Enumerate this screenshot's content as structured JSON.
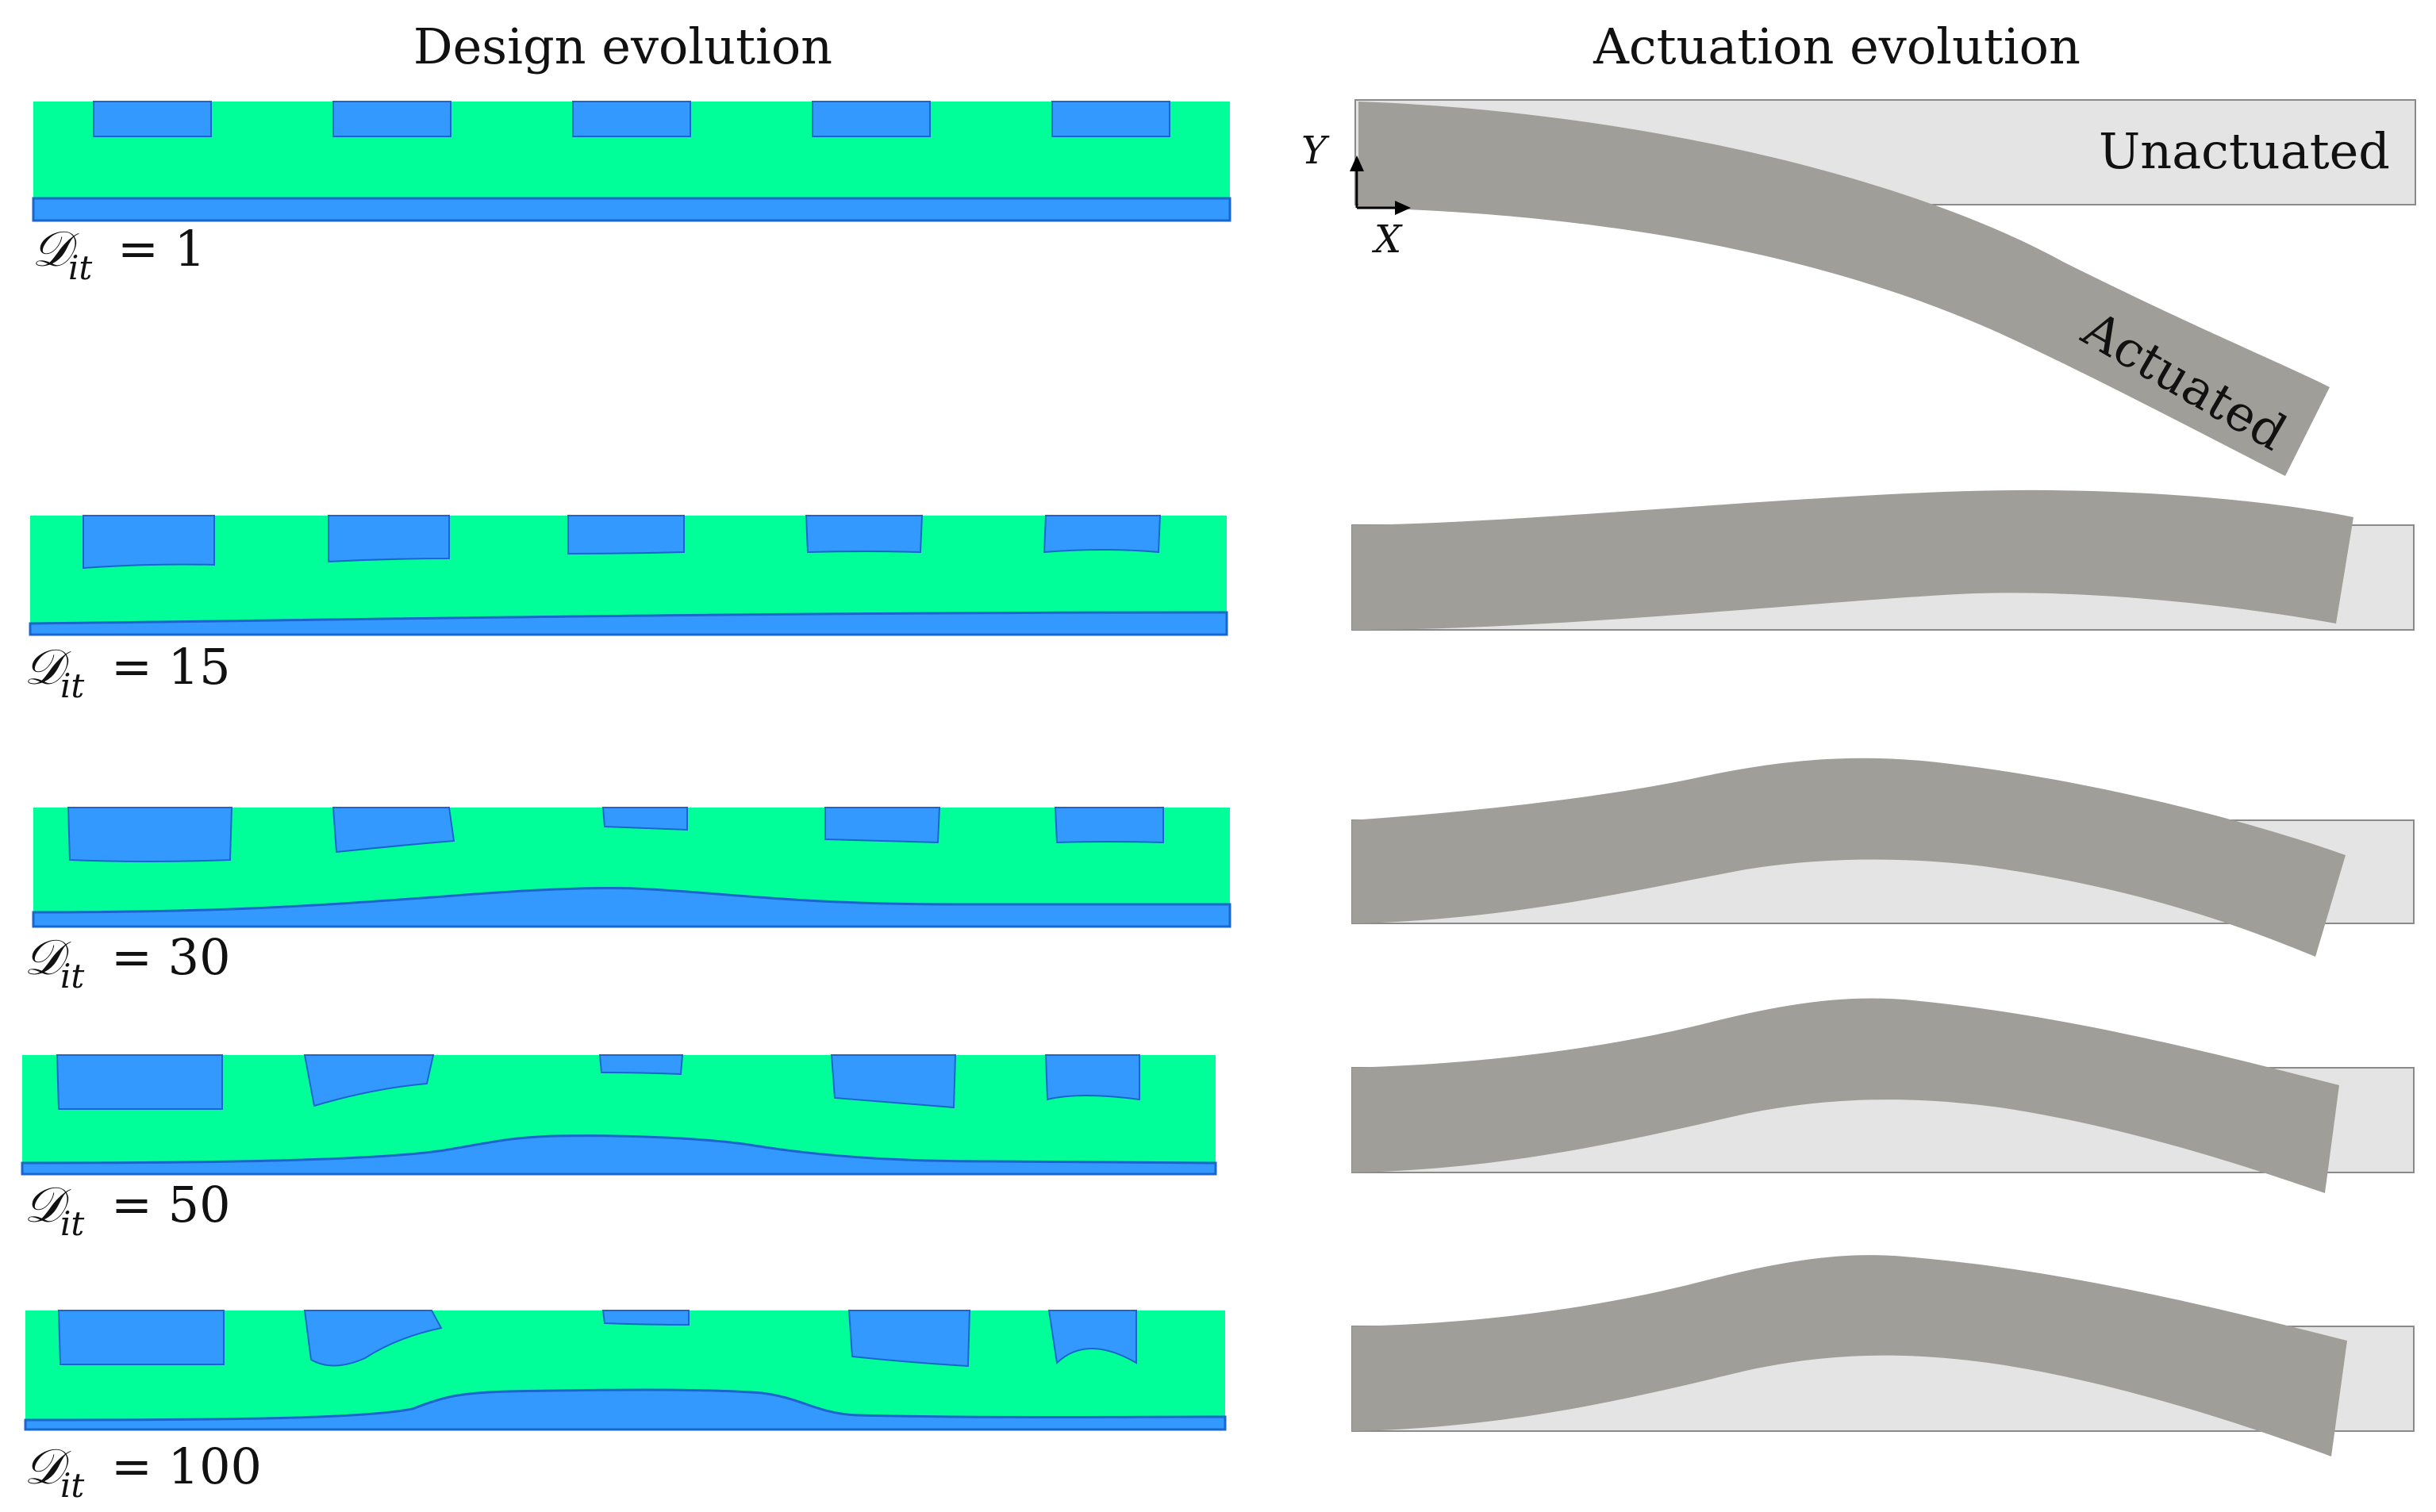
{
  "headers": {
    "design": "Design evolution",
    "actuation": "Actuation evolution"
  },
  "annotations": {
    "unactuated": "Unactuated",
    "actuated": "Actuated",
    "axis_x": "X",
    "axis_y": "Y"
  },
  "label_symbol": "𝒟",
  "label_subscript": "it",
  "iterations": [
    {
      "value": "= 1"
    },
    {
      "value": "= 15"
    },
    {
      "value": "= 30"
    },
    {
      "value": "= 50"
    },
    {
      "value": "= 100"
    }
  ],
  "colors": {
    "matrix": "#00ff99",
    "material": "#3399ff",
    "material_edge": "#1a66cc",
    "actuated": "#a09e98",
    "unactuated": "#e4e4e4",
    "unactuated_edge": "#8a8a8a"
  }
}
